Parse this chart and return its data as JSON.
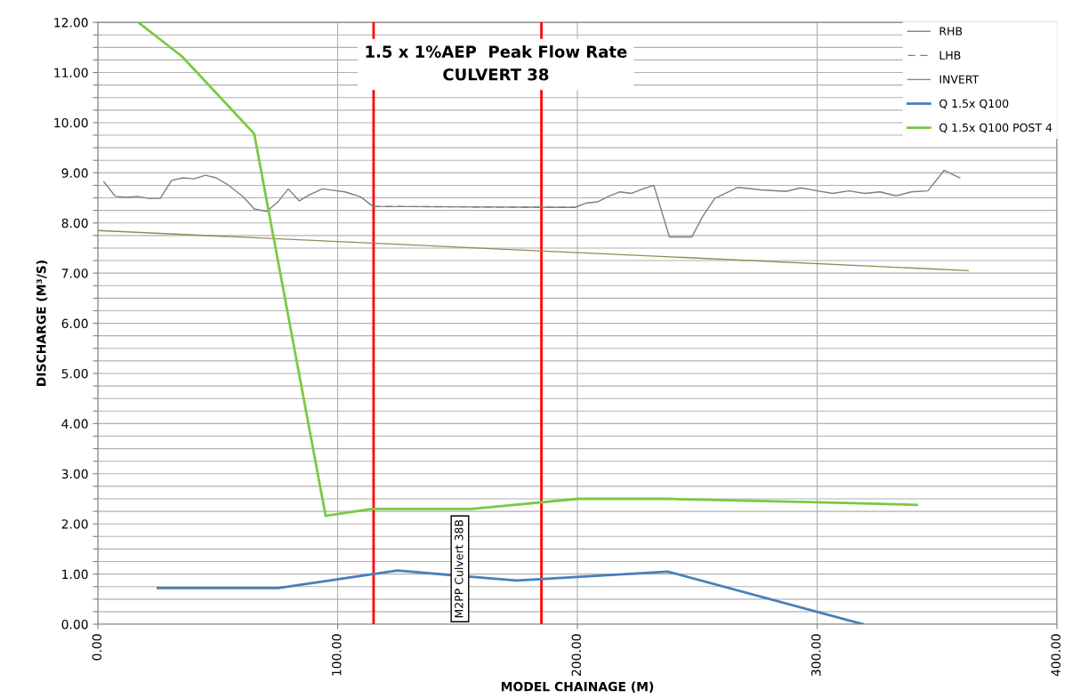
{
  "chart_data": {
    "type": "line",
    "xlabel": "MODEL CHAINAGE (M)",
    "ylabel": "DISCHARGE (M³/S)",
    "xlim": [
      0,
      400
    ],
    "ylim": [
      0,
      12
    ],
    "xticks": [
      {
        "value": 0,
        "label": "0.00"
      },
      {
        "value": 100,
        "label": "100.00"
      },
      {
        "value": 200,
        "label": "200.00"
      },
      {
        "value": 300,
        "label": "300.00"
      },
      {
        "value": 400,
        "label": "400.00"
      }
    ],
    "yticks": [
      {
        "value": 0,
        "label": "0.00"
      },
      {
        "value": 0.25,
        "label": null
      },
      {
        "value": 0.5,
        "label": null
      },
      {
        "value": 0.75,
        "label": null
      },
      {
        "value": 1,
        "label": "1.00"
      },
      {
        "value": 1.25,
        "label": null
      },
      {
        "value": 1.5,
        "label": null
      },
      {
        "value": 1.75,
        "label": null
      },
      {
        "value": 2,
        "label": "2.00"
      },
      {
        "value": 2.25,
        "label": null
      },
      {
        "value": 2.5,
        "label": null
      },
      {
        "value": 2.75,
        "label": null
      },
      {
        "value": 3,
        "label": "3.00"
      },
      {
        "value": 3.25,
        "label": null
      },
      {
        "value": 3.5,
        "label": null
      },
      {
        "value": 3.75,
        "label": null
      },
      {
        "value": 4,
        "label": "4.00"
      },
      {
        "value": 4.25,
        "label": null
      },
      {
        "value": 4.5,
        "label": null
      },
      {
        "value": 4.75,
        "label": null
      },
      {
        "value": 5,
        "label": "5.00"
      },
      {
        "value": 5.25,
        "label": null
      },
      {
        "value": 5.5,
        "label": null
      },
      {
        "value": 5.75,
        "label": null
      },
      {
        "value": 6,
        "label": "6.00"
      },
      {
        "value": 6.25,
        "label": null
      },
      {
        "value": 6.5,
        "label": null
      },
      {
        "value": 6.75,
        "label": null
      },
      {
        "value": 7,
        "label": "7.00"
      },
      {
        "value": 7.25,
        "label": null
      },
      {
        "value": 7.5,
        "label": null
      },
      {
        "value": 7.75,
        "label": null
      },
      {
        "value": 8,
        "label": "8.00"
      },
      {
        "value": 8.25,
        "label": null
      },
      {
        "value": 8.5,
        "label": null
      },
      {
        "value": 8.75,
        "label": null
      },
      {
        "value": 9,
        "label": "9.00"
      },
      {
        "value": 9.25,
        "label": null
      },
      {
        "value": 9.5,
        "label": null
      },
      {
        "value": 9.75,
        "label": null
      },
      {
        "value": 10,
        "label": "10.00"
      },
      {
        "value": 10.25,
        "label": null
      },
      {
        "value": 10.5,
        "label": null
      },
      {
        "value": 10.75,
        "label": null
      },
      {
        "value": 11,
        "label": "11.00"
      },
      {
        "value": 11.25,
        "label": null
      },
      {
        "value": 11.5,
        "label": null
      },
      {
        "value": 11.75,
        "label": null
      },
      {
        "value": 12,
        "label": "12.00"
      }
    ],
    "grid": true,
    "legend": "top right",
    "marker": "none",
    "series": [
      {
        "name": "RHB",
        "color": "#7f7f7f",
        "line_style": "solid",
        "x": [
          2.5,
          7.3,
          12.2,
          16.5,
          21.2,
          26.0,
          30.8,
          35.6,
          40.0,
          44.9,
          49.3,
          54.0,
          60.9,
          65.2,
          70.5,
          75.1,
          79.4,
          84.0,
          88.6,
          93.7,
          98.3,
          103.0,
          109.6,
          114.7,
          199.0,
          203.9,
          208.3,
          213.4,
          217.6,
          222.6,
          227.4,
          231.9,
          238.4,
          247.7,
          252.4,
          257.3,
          267.0,
          276.4,
          287.1,
          293.1,
          300.0,
          306.5,
          313.3,
          319.8,
          326.2,
          332.9,
          339.4,
          346.2,
          353.0,
          359.5
        ],
        "values": [
          8.82,
          8.53,
          8.51,
          8.53,
          8.49,
          8.49,
          8.85,
          8.9,
          8.88,
          8.95,
          8.9,
          8.77,
          8.51,
          8.28,
          8.23,
          8.42,
          8.68,
          8.44,
          8.57,
          8.68,
          8.65,
          8.62,
          8.52,
          8.33,
          8.31,
          8.4,
          8.42,
          8.54,
          8.62,
          8.59,
          8.68,
          8.75,
          7.72,
          7.72,
          8.14,
          8.49,
          8.71,
          8.66,
          8.63,
          8.7,
          8.64,
          8.59,
          8.64,
          8.59,
          8.62,
          8.54,
          8.62,
          8.64,
          9.05,
          8.9
        ]
      },
      {
        "name": "LHB",
        "color": "#7f7f7f",
        "line_style": "dashed",
        "x": [
          114.7,
          199.0
        ],
        "values": [
          8.33,
          8.31
        ]
      },
      {
        "name": "INVERT",
        "color": "#948a54",
        "line_style": "solid",
        "x": [
          0,
          363
        ],
        "values": [
          7.85,
          7.05
        ]
      },
      {
        "name": "Q 1.5x Q100",
        "color": "#4a7ebb",
        "line_style": "solid",
        "x": [
          25.0,
          75.2,
          124.9,
          174.7,
          237.7,
          319.1
        ],
        "values": [
          0.72,
          0.72,
          1.07,
          0.87,
          1.05,
          0
        ]
      },
      {
        "name": "Q 1.5x Q100 POST 4",
        "color": "#7ac943",
        "line_style": "solid",
        "x": [
          16.8,
          35.1,
          65.2,
          95.0,
          114.3,
          155.8,
          200.4,
          237.5,
          300.0,
          341.6
        ],
        "values": [
          12.0,
          11.32,
          9.78,
          2.16,
          2.3,
          2.3,
          2.5,
          2.5,
          2.43,
          2.38
        ]
      }
    ],
    "ref_lines": [
      {
        "axis": "x",
        "value": 115,
        "color": "#ff0000"
      },
      {
        "axis": "x",
        "value": 185,
        "color": "#ff0000"
      }
    ],
    "annotations": [
      "1.5 x 1%AEP  Peak Flow Rate\nCULVERT 38",
      "M2PP Culvert 38B"
    ]
  }
}
